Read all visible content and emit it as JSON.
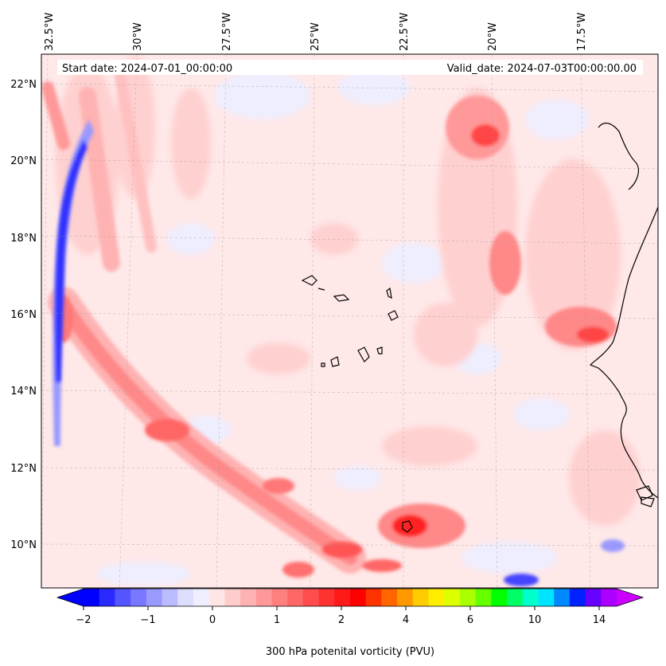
{
  "header": {
    "start_date": "Start date: 2024-07-01_00:00:00",
    "valid_date": "Valid_date: 2024-07-03T00:00:00.00"
  },
  "map": {
    "longitude_labels": [
      "32.5°W",
      "30°W",
      "27.5°W",
      "25°W",
      "22.5°W",
      "20°W",
      "17.5°W"
    ],
    "latitude_labels": [
      "22°N",
      "20°N",
      "18°N",
      "16°N",
      "14°N",
      "12°N",
      "10°N"
    ]
  },
  "colorbar": {
    "label": "300 hPa potenital vorticity (PVU)",
    "tick_labels": [
      "−2",
      "−1",
      "0",
      "1",
      "2",
      "4",
      "6",
      "10",
      "14"
    ],
    "colors": [
      "#0000ff",
      "#2a2aff",
      "#5555ff",
      "#7777ff",
      "#9999ff",
      "#bbbbff",
      "#ddddff",
      "#eeeeff",
      "#ffe5e5",
      "#ffcccc",
      "#ffb2b2",
      "#ff9999",
      "#ff7f7f",
      "#ff6666",
      "#ff4c4c",
      "#ff3232",
      "#ff1919",
      "#ff0000",
      "#ff3300",
      "#ff6600",
      "#ff9900",
      "#ffcc00",
      "#ffee00",
      "#ddff00",
      "#aaff00",
      "#66ff00",
      "#00ff00",
      "#00ff66",
      "#00ffcc",
      "#00e5ff",
      "#0088ff",
      "#0022ff",
      "#6600ff",
      "#aa00ff"
    ],
    "under_color": "#0000ff",
    "over_color": "#cc00ff"
  }
}
